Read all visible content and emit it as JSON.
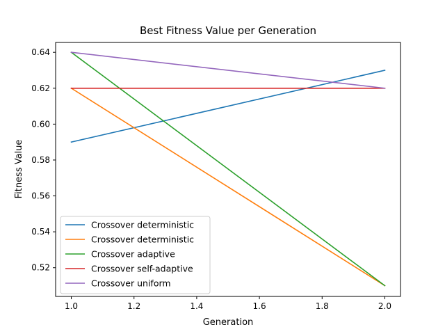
{
  "chart_data": {
    "type": "line",
    "title": "Best Fitness Value per Generation",
    "xlabel": "Generation",
    "ylabel": "Fitness Value",
    "xlim": [
      0.95,
      2.05
    ],
    "ylim": [
      0.504,
      0.6455
    ],
    "xticks": [
      1.0,
      1.2,
      1.4,
      1.6,
      1.8,
      2.0
    ],
    "xtick_labels": [
      "1.0",
      "1.2",
      "1.4",
      "1.6",
      "1.8",
      "2.0"
    ],
    "yticks": [
      0.52,
      0.54,
      0.56,
      0.58,
      0.6,
      0.62,
      0.64
    ],
    "ytick_labels": [
      "0.52",
      "0.54",
      "0.56",
      "0.58",
      "0.60",
      "0.62",
      "0.64"
    ],
    "grid": false,
    "legend_position": "lower-left",
    "x": [
      1.0,
      2.0
    ],
    "series": [
      {
        "name": "Crossover deterministic",
        "color": "#1f77b4",
        "values": [
          0.59,
          0.63
        ]
      },
      {
        "name": "Crossover deterministic",
        "color": "#ff7f0e",
        "values": [
          0.62,
          0.51
        ]
      },
      {
        "name": "Crossover adaptive",
        "color": "#2ca02c",
        "values": [
          0.64,
          0.51
        ]
      },
      {
        "name": "Crossover self-adaptive",
        "color": "#d62728",
        "values": [
          0.62,
          0.62
        ]
      },
      {
        "name": "Crossover uniform",
        "color": "#9467bd",
        "values": [
          0.64,
          0.62
        ]
      }
    ]
  }
}
